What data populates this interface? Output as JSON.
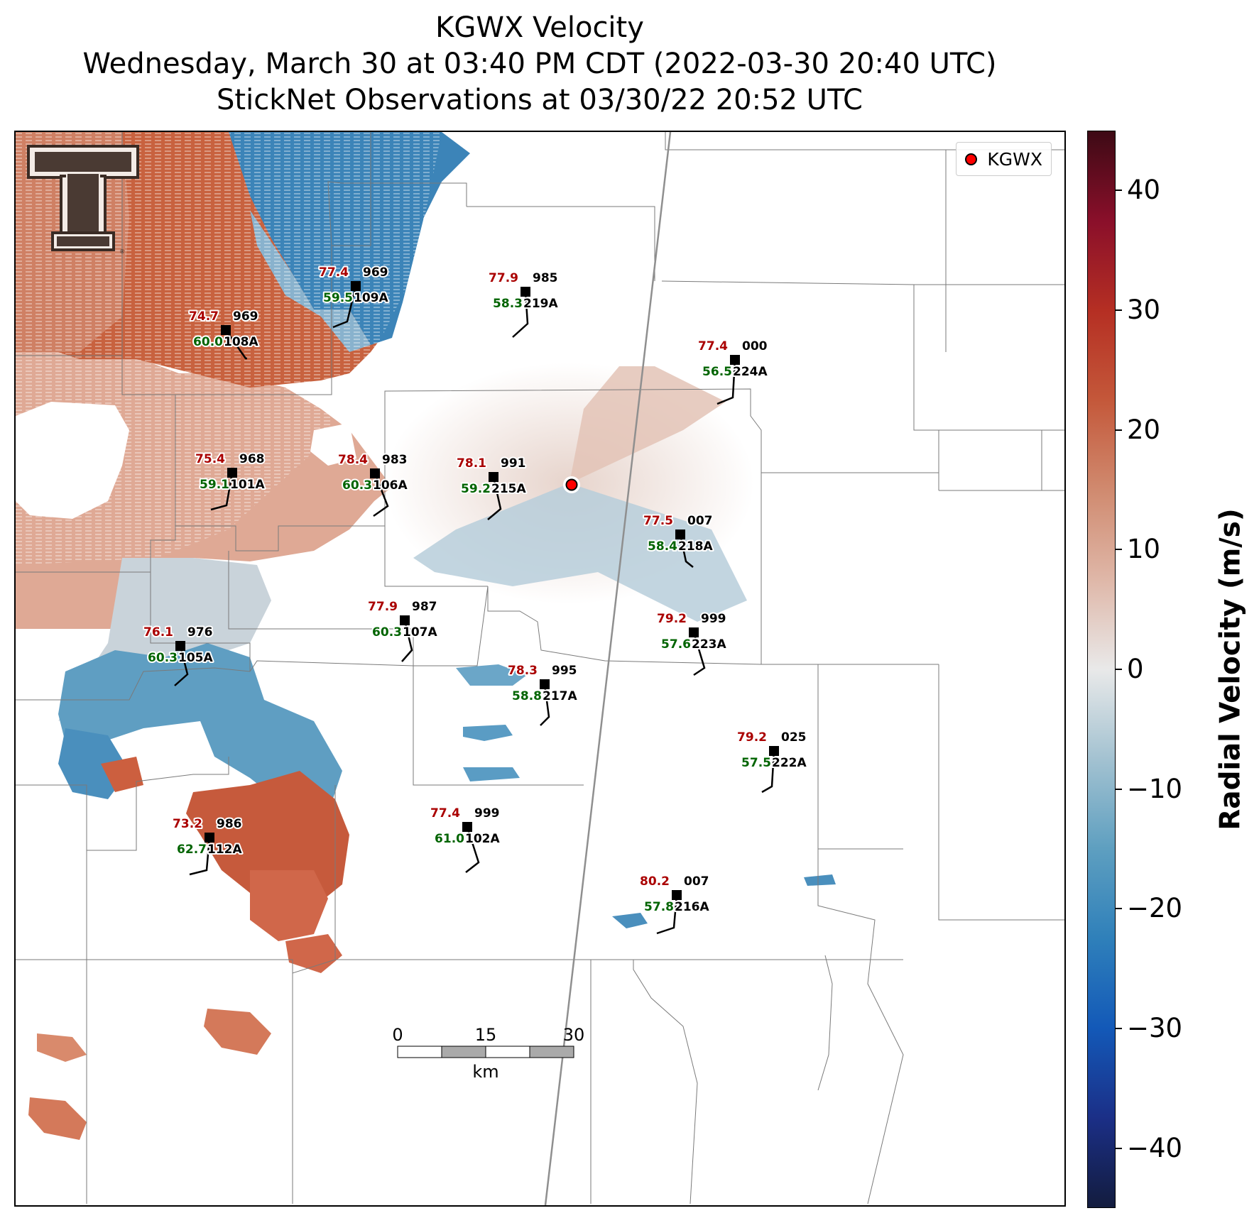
{
  "title": {
    "line1": "KGWX Velocity",
    "line2": "Wednesday, March 30 at 03:40 PM CDT (2022-03-30 20:40 UTC)",
    "line3": "StickNet Observations at 03/30/22 20:52 UTC"
  },
  "legend": {
    "label": "KGWX",
    "marker_color": "#ff0000"
  },
  "colorbar": {
    "title": "Radial Velocity (m/s)",
    "range": [
      -45,
      45
    ],
    "tick_values": [
      40,
      30,
      20,
      10,
      0,
      -10,
      -20,
      -30,
      -40
    ],
    "tick_labels": [
      "40",
      "30",
      "20",
      "10",
      "0",
      "−10",
      "−20",
      "−30",
      "−40"
    ],
    "colormap": [
      "#131c3e",
      "#1b2f87",
      "#1359b8",
      "#2f80ba",
      "#5e9fc0",
      "#a3c2d1",
      "#e9e9e9",
      "#dfb7a8",
      "#d08a6f",
      "#c4583a",
      "#b52f23",
      "#8a0f2a",
      "#3d0a15"
    ]
  },
  "scale_bar": {
    "labels": [
      "0",
      "15",
      "30"
    ],
    "unit": "km"
  },
  "stations": [
    {
      "id": "109A",
      "temp": "77.4",
      "dew": "59.5",
      "pressure": "969"
    },
    {
      "id": "108A",
      "temp": "74.7",
      "dew": "60.0",
      "pressure": "969"
    },
    {
      "id": "219A",
      "temp": "77.9",
      "dew": "58.3",
      "pressure": "985"
    },
    {
      "id": "224A",
      "temp": "77.4",
      "dew": "56.5",
      "pressure": "000"
    },
    {
      "id": "101A",
      "temp": "75.4",
      "dew": "59.1",
      "pressure": "968"
    },
    {
      "id": "106A",
      "temp": "78.4",
      "dew": "60.3",
      "pressure": "983"
    },
    {
      "id": "215A",
      "temp": "78.1",
      "dew": "59.2",
      "pressure": "991"
    },
    {
      "id": "218A",
      "temp": "77.5",
      "dew": "58.4",
      "pressure": "007"
    },
    {
      "id": "107A",
      "temp": "77.9",
      "dew": "60.3",
      "pressure": "987"
    },
    {
      "id": "105A",
      "temp": "76.1",
      "dew": "60.3",
      "pressure": "976"
    },
    {
      "id": "223A",
      "temp": "79.2",
      "dew": "57.6",
      "pressure": "999"
    },
    {
      "id": "217A",
      "temp": "78.3",
      "dew": "58.8",
      "pressure": "995"
    },
    {
      "id": "222A",
      "temp": "79.2",
      "dew": "57.5",
      "pressure": "025"
    },
    {
      "id": "102A",
      "temp": "77.4",
      "dew": "61.0",
      "pressure": "999"
    },
    {
      "id": "112A",
      "temp": "73.2",
      "dew": "62.7",
      "pressure": "986"
    },
    {
      "id": "216A",
      "temp": "80.2",
      "dew": "57.8",
      "pressure": "007"
    }
  ]
}
